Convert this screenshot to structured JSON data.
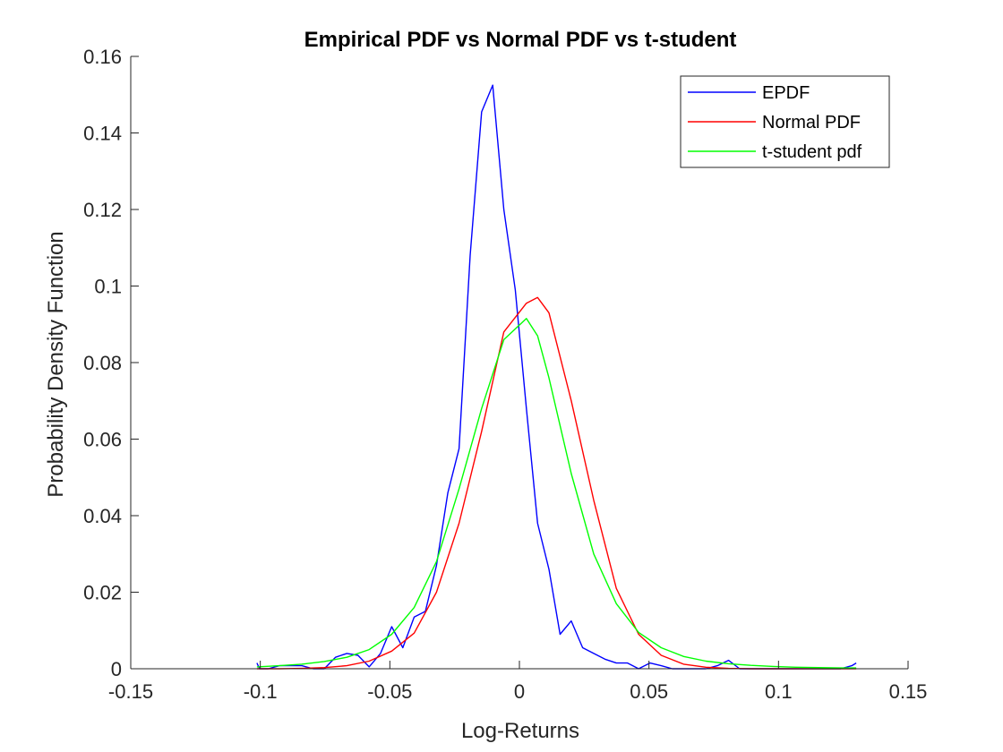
{
  "chart_data": {
    "type": "line",
    "title": "Empirical PDF vs Normal PDF vs t-student",
    "xlabel": "Log-Returns",
    "ylabel": "Probability Density Function",
    "xlim": [
      -0.15,
      0.15
    ],
    "ylim": [
      0,
      0.16
    ],
    "xticks": [
      "-0.15",
      "-0.1",
      "-0.05",
      "0",
      "0.05",
      "0.1",
      "0.15"
    ],
    "yticks": [
      "0",
      "0.02",
      "0.04",
      "0.06",
      "0.08",
      "0.1",
      "0.12",
      "0.14",
      "0.16"
    ],
    "grid": false,
    "legend_position": "top-right",
    "series": [
      {
        "name": "EPDF",
        "color": "#0000ff",
        "x": [
          -0.1013,
          -0.1003,
          -0.0969,
          -0.0926,
          -0.0883,
          -0.084,
          -0.0796,
          -0.0753,
          -0.071,
          -0.0666,
          -0.0623,
          -0.058,
          -0.0536,
          -0.0493,
          -0.045,
          -0.0406,
          -0.0363,
          -0.032,
          -0.0276,
          -0.0233,
          -0.019,
          -0.0146,
          -0.0103,
          -0.006,
          -0.0016,
          0.0027,
          0.007,
          0.0114,
          0.0157,
          0.02,
          0.0244,
          0.0287,
          0.033,
          0.0374,
          0.0417,
          0.046,
          0.0504,
          0.0547,
          0.059,
          0.0634,
          0.0677,
          0.072,
          0.0764,
          0.0807,
          0.085,
          0.0893,
          0.0937,
          0.098,
          0.1023,
          0.1067,
          0.111,
          0.1153,
          0.1197,
          0.124,
          0.1283,
          0.13
        ],
        "y": [
          0.0015,
          0.0,
          0.0,
          0.0008,
          0.0008,
          0.0008,
          0.0,
          0.0,
          0.003,
          0.004,
          0.0035,
          0.0005,
          0.004,
          0.011,
          0.0055,
          0.0135,
          0.015,
          0.027,
          0.046,
          0.0575,
          0.108,
          0.1455,
          0.1525,
          0.12,
          0.099,
          0.068,
          0.038,
          0.026,
          0.009,
          0.0125,
          0.0055,
          0.004,
          0.0025,
          0.0015,
          0.0015,
          0.0,
          0.0015,
          0.0008,
          0.0,
          0.0,
          0.0,
          0.0,
          0.0008,
          0.0022,
          0.0,
          0.0,
          0.0,
          0.0,
          0.0,
          0.0,
          0.0,
          0.0,
          0.0,
          0.0,
          0.0008,
          0.0015
        ]
      },
      {
        "name": "Normal PDF",
        "color": "#ff0000",
        "x": [
          -0.1013,
          -0.0926,
          -0.084,
          -0.0753,
          -0.0666,
          -0.058,
          -0.0493,
          -0.0406,
          -0.032,
          -0.0233,
          -0.0146,
          -0.006,
          0.0027,
          0.007,
          0.0114,
          0.02,
          0.0287,
          0.0374,
          0.046,
          0.0547,
          0.0634,
          0.072,
          0.0807,
          0.0893,
          0.098,
          0.1067,
          0.1153,
          0.124,
          0.13
        ],
        "y": [
          0.0,
          0.0,
          0.0001,
          0.0003,
          0.0008,
          0.002,
          0.0046,
          0.0093,
          0.02,
          0.038,
          0.062,
          0.088,
          0.0955,
          0.097,
          0.093,
          0.07,
          0.044,
          0.021,
          0.009,
          0.0035,
          0.0012,
          0.0004,
          0.0001,
          0.0,
          0.0,
          0.0,
          0.0,
          0.0,
          0.0
        ]
      },
      {
        "name": "t-student pdf",
        "color": "#00ff00",
        "x": [
          -0.1013,
          -0.0926,
          -0.084,
          -0.0753,
          -0.0666,
          -0.058,
          -0.0493,
          -0.0406,
          -0.032,
          -0.0233,
          -0.0146,
          -0.006,
          0.0027,
          0.007,
          0.0114,
          0.02,
          0.0287,
          0.0374,
          0.046,
          0.0547,
          0.0634,
          0.072,
          0.0807,
          0.0893,
          0.098,
          0.1067,
          0.1153,
          0.124,
          0.13
        ],
        "y": [
          0.0005,
          0.0008,
          0.0012,
          0.0019,
          0.003,
          0.005,
          0.009,
          0.016,
          0.028,
          0.047,
          0.068,
          0.086,
          0.0915,
          0.087,
          0.076,
          0.051,
          0.03,
          0.017,
          0.0095,
          0.0055,
          0.0032,
          0.002,
          0.0013,
          0.0009,
          0.0006,
          0.0004,
          0.0003,
          0.0002,
          0.0002
        ]
      }
    ]
  }
}
